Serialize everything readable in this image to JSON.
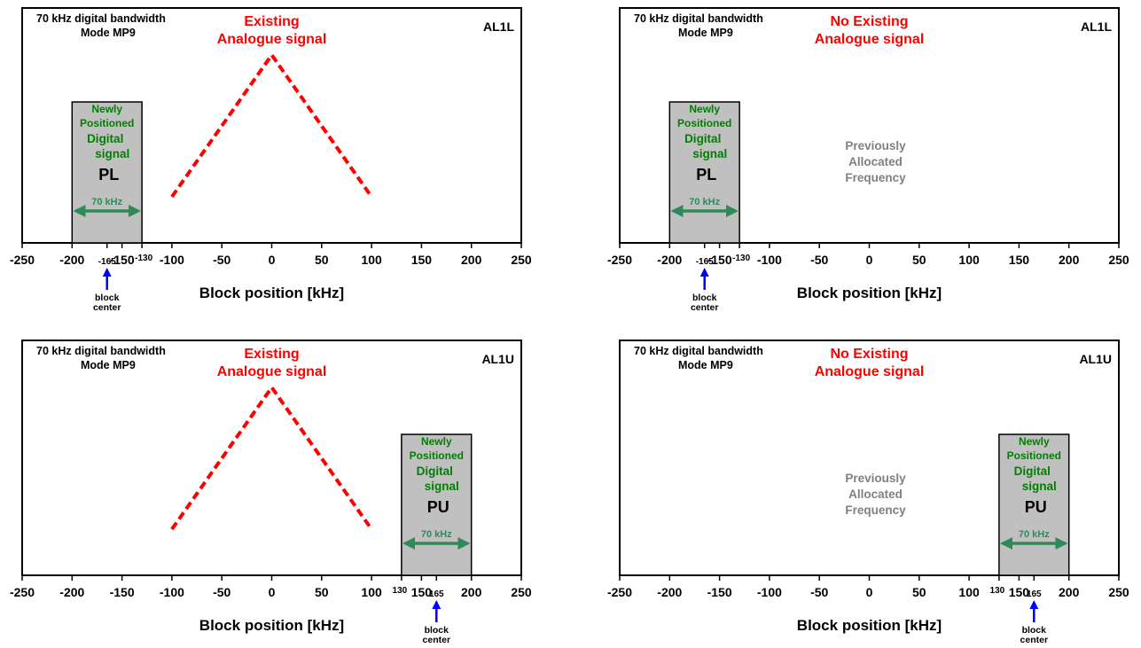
{
  "colors": {
    "analogue": "#ff0000",
    "digital_text": "#008000",
    "bandwidth_arrow": "#2e8b57",
    "block_fill": "#c0c0c0",
    "center_arrow": "#0000ff",
    "previous_text": "#808080",
    "axis": "#000000"
  },
  "axis": {
    "xlabel": "Block position  [kHz]",
    "xlim": [
      -250,
      250
    ],
    "ticks": [
      -250,
      -200,
      -150,
      -100,
      -50,
      0,
      50,
      100,
      150,
      200,
      250
    ],
    "tick_labels": [
      "-250",
      "-200",
      "-150",
      "-100",
      "-50",
      "0",
      "50",
      "100",
      "150",
      "200",
      "250"
    ]
  },
  "panels": [
    {
      "id": "p1",
      "mode_line1": "70 kHz digital bandwidth",
      "mode_line2": "Mode MP9",
      "tag": "AL1L",
      "analogue_line1": "Existing",
      "analogue_line2": "Analogue signal",
      "analogue_present": true,
      "analogue_triangle": {
        "x": [
          -100,
          0,
          100
        ],
        "level": [
          0.31,
          1.0,
          0.31
        ]
      },
      "previous_text": [],
      "block": {
        "from": -200,
        "to": -130,
        "center": -165,
        "text_lines": [
          "Newly",
          "Positioned",
          "Digital",
          "signal"
        ],
        "name": "PL",
        "bandwidth_label": "70 kHz",
        "edge_label": "-130",
        "center_label": "-165",
        "center_note": [
          "block",
          "center"
        ]
      }
    },
    {
      "id": "p2",
      "mode_line1": "70 kHz digital bandwidth",
      "mode_line2": "Mode MP9",
      "tag": "AL1L",
      "analogue_line1": "No Existing",
      "analogue_line2": "Analogue signal",
      "analogue_present": false,
      "analogue_triangle": null,
      "previous_text": [
        "Previously",
        "Allocated",
        "Frequency"
      ],
      "block": {
        "from": -200,
        "to": -130,
        "center": -165,
        "text_lines": [
          "Newly",
          "Positioned",
          "Digital",
          "signal"
        ],
        "name": "PL",
        "bandwidth_label": "70 kHz",
        "edge_label": "-130",
        "center_label": "-165",
        "center_note": [
          "block",
          "center"
        ]
      }
    },
    {
      "id": "p3",
      "mode_line1": "70 kHz digital bandwidth",
      "mode_line2": "Mode MP9",
      "tag": "AL1U",
      "analogue_line1": "Existing",
      "analogue_line2": "Analogue signal",
      "analogue_present": true,
      "analogue_triangle": {
        "x": [
          -100,
          0,
          100
        ],
        "level": [
          0.31,
          1.0,
          0.31
        ]
      },
      "previous_text": [],
      "block": {
        "from": 130,
        "to": 200,
        "center": 165,
        "text_lines": [
          "Newly",
          "Positioned",
          "Digital",
          "signal"
        ],
        "name": "PU",
        "bandwidth_label": "70 kHz",
        "edge_label": "130",
        "center_label": "165",
        "center_note": [
          "block",
          "center"
        ]
      }
    },
    {
      "id": "p4",
      "mode_line1": "70 kHz digital bandwidth",
      "mode_line2": "Mode MP9",
      "tag": "AL1U",
      "analogue_line1": "No Existing",
      "analogue_line2": "Analogue signal",
      "analogue_present": false,
      "analogue_triangle": null,
      "previous_text": [
        "Previously",
        "Allocated",
        "Frequency"
      ],
      "block": {
        "from": 130,
        "to": 200,
        "center": 165,
        "text_lines": [
          "Newly",
          "Positioned",
          "Digital",
          "signal"
        ],
        "name": "PU",
        "bandwidth_label": "70 kHz",
        "edge_label": "130",
        "center_label": "165",
        "center_note": [
          "block",
          "center"
        ]
      }
    }
  ]
}
